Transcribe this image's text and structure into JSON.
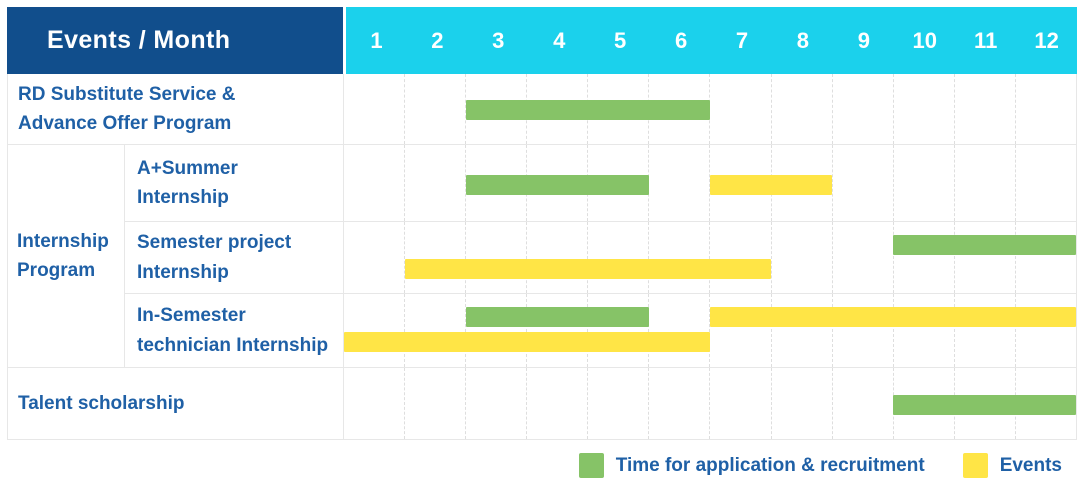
{
  "header": {
    "title": "Events / Month",
    "months": [
      "1",
      "2",
      "3",
      "4",
      "5",
      "6",
      "7",
      "8",
      "9",
      "10",
      "11",
      "12"
    ]
  },
  "colors": {
    "header_bg": "#114e8c",
    "month_header_bg": "#1bd1ec",
    "label_text": "#1f60a6",
    "application_bar": "#86c367",
    "event_bar": "#ffe546",
    "grid_line": "#e7e7e7",
    "month_divider": "#dedede"
  },
  "ui": {
    "rows": [
      {
        "label": "RD Substitute Service &\nAdvance Offer Program",
        "sub": false,
        "bars": [
          {
            "kind": "application",
            "line": "single",
            "start": 3,
            "end": 6
          }
        ]
      },
      {
        "label": "A+Summer\nInternship",
        "sub": true,
        "bars": [
          {
            "kind": "application",
            "line": "single",
            "start": 3,
            "end": 5
          },
          {
            "kind": "event",
            "line": "single",
            "start": 7,
            "end": 8
          }
        ]
      },
      {
        "label": "Semester project\nInternship",
        "sub": true,
        "bars": [
          {
            "kind": "application",
            "line": "upper",
            "start": 10,
            "end": 12
          },
          {
            "kind": "event",
            "line": "lower",
            "start": 2,
            "end": 7
          }
        ]
      },
      {
        "label": "In-Semester\ntechnician Internship",
        "sub": true,
        "bars": [
          {
            "kind": "application",
            "line": "upper",
            "start": 3,
            "end": 5
          },
          {
            "kind": "event",
            "line": "upper",
            "start": 7,
            "end": 12
          },
          {
            "kind": "event",
            "line": "lower",
            "start": 1,
            "end": 6
          }
        ]
      },
      {
        "label": "Talent scholarship",
        "sub": false,
        "bars": [
          {
            "kind": "application",
            "line": "single",
            "start": 10,
            "end": 12
          }
        ]
      }
    ],
    "group": {
      "label": "Internship\nProgram",
      "from": 1,
      "to": 3
    },
    "legend": [
      {
        "kind": "application",
        "label": "Time for application & recruitment"
      },
      {
        "kind": "event",
        "label": "Events"
      }
    ]
  },
  "chart_data": {
    "type": "bar",
    "subtype": "gantt-timeline",
    "title": "Events / Month",
    "x_axis": {
      "label": "Month",
      "categories": [
        1,
        2,
        3,
        4,
        5,
        6,
        7,
        8,
        9,
        10,
        11,
        12
      ]
    },
    "legend": [
      "Time for application & recruitment",
      "Events"
    ],
    "legend_position": "bottom-right",
    "grid": "dashed-vertical-month-dividers",
    "rows": [
      {
        "event": "RD Substitute Service & Advance Offer Program",
        "group": null,
        "bars": [
          {
            "series": "Time for application & recruitment",
            "start_month": 3,
            "end_month": 6
          }
        ]
      },
      {
        "event": "A+Summer Internship",
        "group": "Internship Program",
        "bars": [
          {
            "series": "Time for application & recruitment",
            "start_month": 3,
            "end_month": 5
          },
          {
            "series": "Events",
            "start_month": 7,
            "end_month": 8
          }
        ]
      },
      {
        "event": "Semester project Internship",
        "group": "Internship Program",
        "bars": [
          {
            "series": "Time for application & recruitment",
            "start_month": 10,
            "end_month": 12
          },
          {
            "series": "Events",
            "start_month": 2,
            "end_month": 7
          }
        ]
      },
      {
        "event": "In-Semester technician Internship",
        "group": "Internship Program",
        "bars": [
          {
            "series": "Time for application & recruitment",
            "start_month": 3,
            "end_month": 5
          },
          {
            "series": "Events",
            "start_month": 7,
            "end_month": 12
          },
          {
            "series": "Events",
            "start_month": 1,
            "end_month": 6
          }
        ]
      },
      {
        "event": "Talent scholarship",
        "group": null,
        "bars": [
          {
            "series": "Time for application & recruitment",
            "start_month": 10,
            "end_month": 12
          }
        ]
      }
    ]
  }
}
